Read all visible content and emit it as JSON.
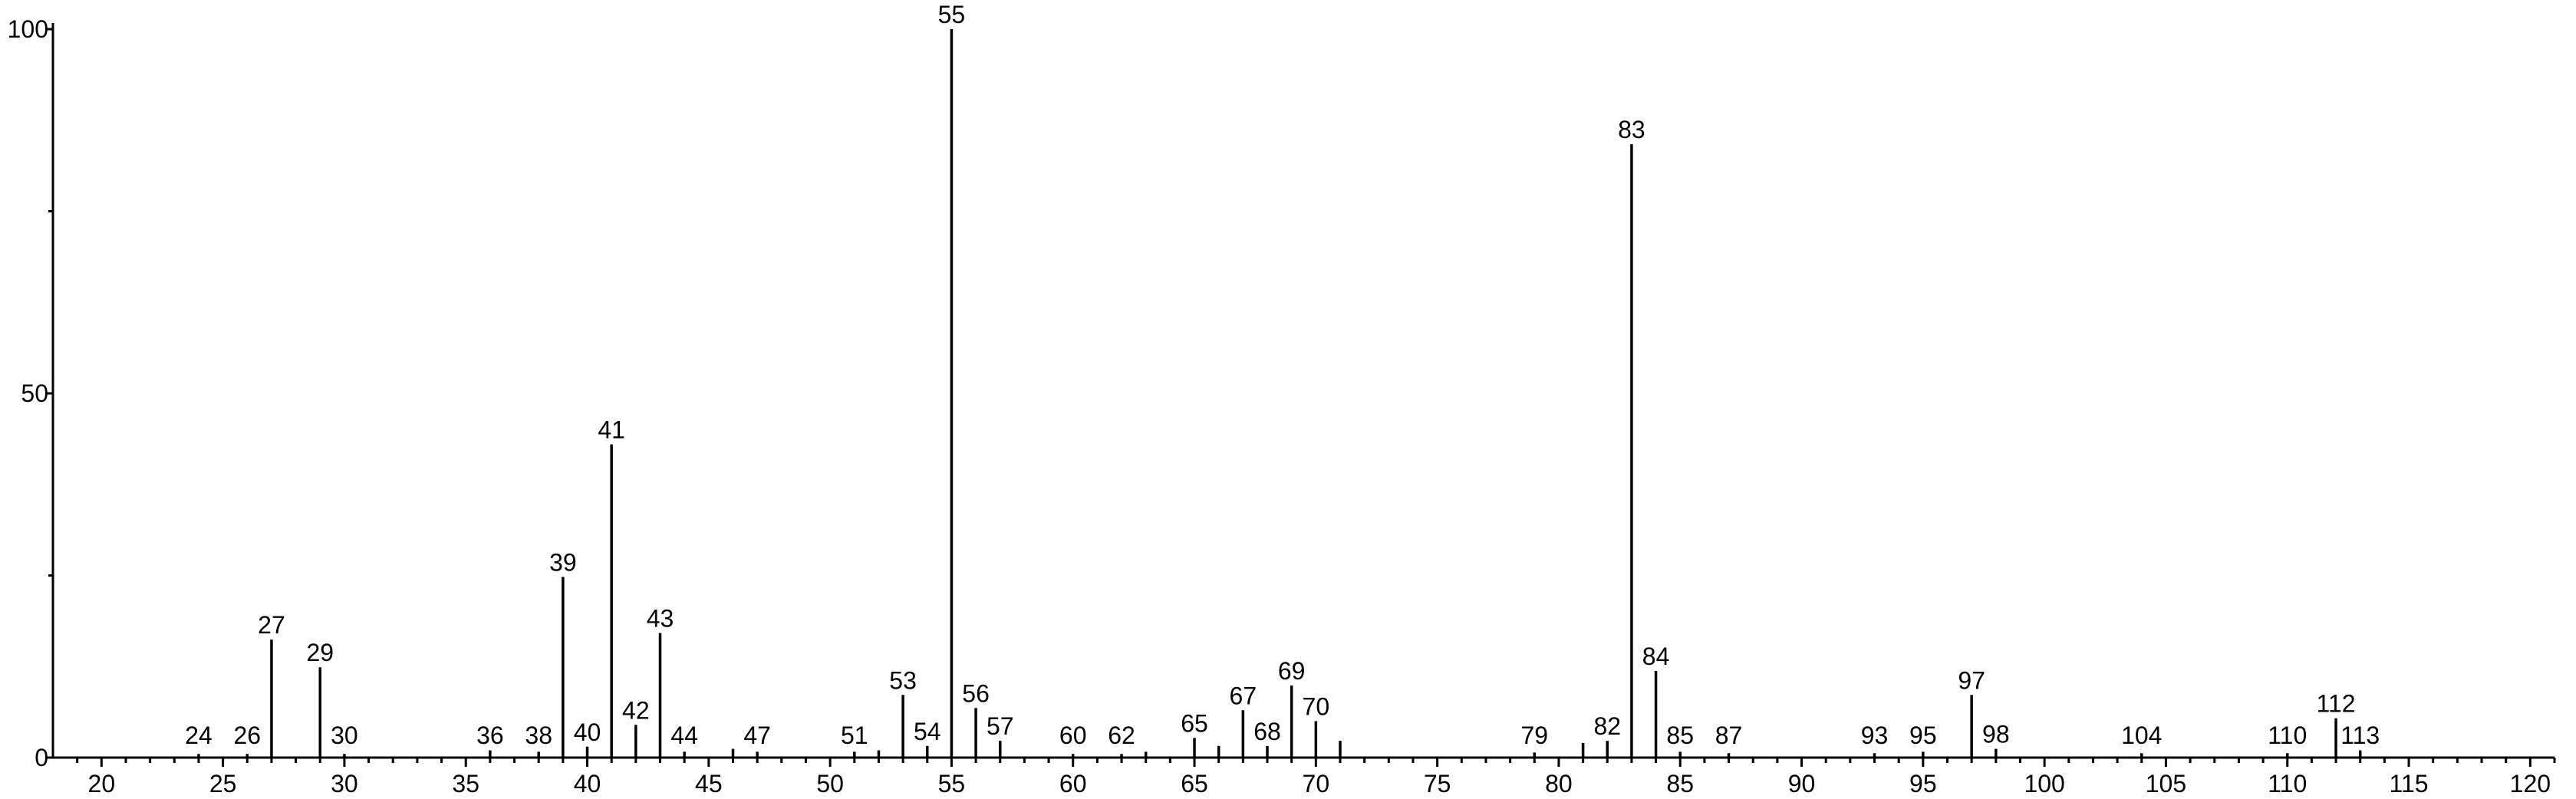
{
  "chart_data": {
    "type": "stick",
    "x": [
      24,
      26,
      27,
      29,
      30,
      36,
      38,
      39,
      40,
      41,
      42,
      43,
      44,
      46,
      47,
      51,
      52,
      53,
      54,
      55,
      56,
      57,
      60,
      62,
      63,
      65,
      66,
      67,
      68,
      69,
      70,
      71,
      79,
      81,
      82,
      83,
      84,
      85,
      87,
      93,
      95,
      97,
      98,
      104,
      110,
      112,
      113
    ],
    "values": [
      0.5,
      0.5,
      16.2,
      12.4,
      0.5,
      1,
      0.8,
      24.8,
      1.5,
      43,
      4.5,
      17.1,
      0.8,
      1.2,
      0.8,
      0.8,
      1,
      8.6,
      1.6,
      100,
      6.8,
      2.3,
      0.5,
      0.5,
      0.8,
      2.7,
      1.6,
      6.5,
      1.6,
      9.9,
      5,
      2.3,
      0.7,
      2,
      2.3,
      84.2,
      11.9,
      0.8,
      0.6,
      0.6,
      0.8,
      8.6,
      1.2,
      0.6,
      0.6,
      5.4,
      1
    ],
    "labels": [
      "24",
      "26",
      "27",
      "29",
      "30",
      "36",
      "38",
      "39",
      "40",
      "41",
      "42",
      "43",
      "44",
      null,
      "47",
      "51",
      null,
      "53",
      "54",
      "55",
      "56",
      "57",
      "60",
      "62",
      null,
      "65",
      null,
      "67",
      "68",
      "69",
      "70",
      null,
      "79",
      null,
      "82",
      "83",
      "84",
      "85",
      "87",
      "93",
      "95",
      "97",
      "98",
      "104",
      "110",
      "112",
      "113"
    ],
    "color": "#000000",
    "xlim": [
      18,
      121
    ],
    "ylim": [
      0,
      100
    ],
    "xticks": [
      20,
      25,
      30,
      35,
      40,
      45,
      50,
      55,
      60,
      65,
      70,
      75,
      80,
      85,
      90,
      95,
      100,
      105,
      110,
      115,
      120
    ],
    "xminorticks": [
      19,
      21,
      22,
      23,
      24,
      26,
      27,
      28,
      29,
      31,
      32,
      33,
      34,
      36,
      37,
      38,
      39,
      41,
      42,
      43,
      44,
      46,
      47,
      48,
      49,
      51,
      52,
      53,
      54,
      56,
      57,
      58,
      59,
      61,
      62,
      63,
      64,
      66,
      67,
      68,
      69,
      71,
      72,
      73,
      74,
      76,
      77,
      78,
      79,
      81,
      82,
      83,
      84,
      86,
      87,
      88,
      89,
      91,
      92,
      93,
      94,
      96,
      97,
      98,
      99,
      101,
      102,
      103,
      104,
      106,
      107,
      108,
      109,
      111,
      112,
      113,
      114,
      116,
      117,
      118,
      119,
      121
    ],
    "yticks": [
      0,
      50,
      100
    ],
    "yminorticks": [
      25,
      75
    ]
  }
}
